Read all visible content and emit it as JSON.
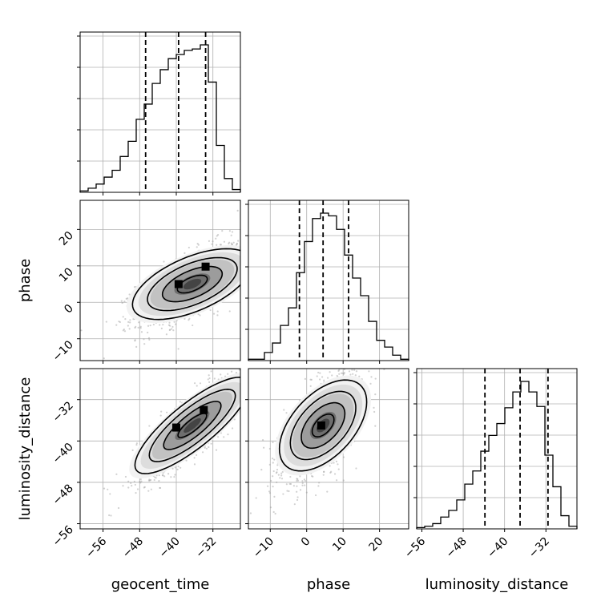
{
  "chart_data": {
    "type": "corner",
    "parameters": [
      "geocent_time",
      "phase",
      "luminosity_distance"
    ],
    "axis_labels": {
      "geocent_time": "geocent_time",
      "phase": "phase",
      "luminosity_distance": "luminosity_distance"
    },
    "ranges": {
      "geocent_time": [
        -61,
        -26
      ],
      "phase": [
        -16,
        28
      ],
      "luminosity_distance": [
        -57,
        -26
      ]
    },
    "ticks": {
      "geocent_time": [
        -56,
        -48,
        -40,
        -32
      ],
      "phase": [
        -10,
        0,
        10,
        20
      ],
      "luminosity_distance": [
        -56,
        -48,
        -40,
        -32
      ]
    },
    "tick_labels": {
      "geocent_time": [
        "−56",
        "−48",
        "−40",
        "−32"
      ],
      "phase": [
        "−10",
        "0",
        "10",
        "20"
      ],
      "luminosity_distance": [
        "−56",
        "−48",
        "−40",
        "−32"
      ]
    },
    "quantiles": {
      "geocent_time": [
        -46.7,
        -39.5,
        -33.6
      ],
      "phase": [
        -2.0,
        4.5,
        11.5
      ],
      "luminosity_distance": [
        -43.8,
        -37.0,
        -31.6
      ]
    },
    "histograms": {
      "geocent_time": {
        "bin_edges": [
          -61,
          -59.25,
          -57.5,
          -55.75,
          -54,
          -52.25,
          -50.5,
          -48.75,
          -47,
          -45.25,
          -43.5,
          -41.75,
          -40,
          -38.25,
          -36.5,
          -34.75,
          -33,
          -31.25,
          -29.5,
          -27.75,
          -26
        ],
        "counts": [
          1,
          3,
          6,
          11,
          16,
          26,
          37,
          53,
          64,
          79,
          89,
          97,
          100,
          103,
          104,
          107,
          80,
          34,
          10,
          2
        ]
      },
      "phase": {
        "bin_edges": [
          -16,
          -13.8,
          -11.6,
          -9.4,
          -7.2,
          -5,
          -2.8,
          -0.6,
          1.6,
          3.8,
          6,
          8.2,
          10.4,
          12.6,
          14.8,
          17,
          19.2,
          21.4,
          23.6,
          25.8,
          28
        ],
        "counts": [
          1,
          1,
          6,
          13,
          26,
          39,
          65,
          88,
          105,
          109,
          107,
          97,
          78,
          61,
          48,
          29,
          15,
          10,
          4,
          1
        ]
      },
      "luminosity_distance": {
        "bin_edges": [
          -57,
          -55.45,
          -53.9,
          -52.35,
          -50.8,
          -49.25,
          -47.7,
          -46.15,
          -44.6,
          -43.05,
          -41.5,
          -39.95,
          -38.4,
          -36.85,
          -35.3,
          -33.75,
          -32.2,
          -30.65,
          -29.1,
          -27.55,
          -26
        ],
        "counts": [
          1,
          2,
          4,
          9,
          14,
          22,
          34,
          44,
          59,
          71,
          80,
          92,
          104,
          112,
          104,
          93,
          56,
          32,
          10,
          2
        ]
      }
    },
    "pairs": [
      {
        "x": "geocent_time",
        "y": "phase",
        "center": [
          -36.5,
          5
        ],
        "sigma": [
          6.0,
          5.5
        ],
        "correlation": 0.66,
        "contour_levels": [
          0.5,
          1.0,
          1.5,
          2.0
        ],
        "mode_points": [
          [
            -39.5,
            5.0
          ],
          [
            -33.6,
            9.8
          ]
        ]
      },
      {
        "x": "geocent_time",
        "y": "luminosity_distance",
        "center": [
          -36.5,
          -37
        ],
        "sigma": [
          6.0,
          5.0
        ],
        "correlation": 0.84,
        "contour_levels": [
          0.5,
          1.0,
          1.5,
          2.0
        ],
        "mode_points": [
          [
            -40.0,
            -37.4
          ],
          [
            -34.0,
            -34.0
          ]
        ]
      },
      {
        "x": "phase",
        "y": "luminosity_distance",
        "center": [
          4.5,
          -37
        ],
        "sigma": [
          5.5,
          5.0
        ],
        "correlation": 0.62,
        "contour_levels": [
          0.5,
          1.0,
          1.5,
          2.0
        ],
        "mode_points": [
          [
            4.0,
            -37.0
          ]
        ]
      }
    ],
    "grid": true,
    "legend": "none"
  }
}
